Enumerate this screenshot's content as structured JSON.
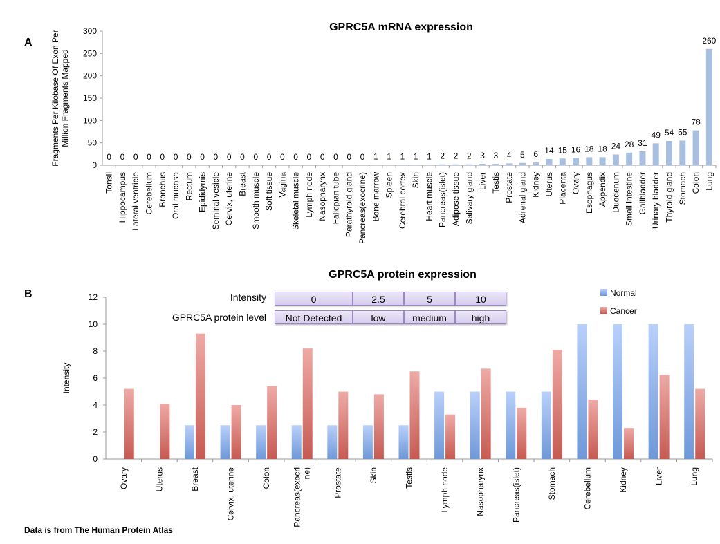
{
  "chart_data": [
    {
      "type": "bar",
      "panel": "A",
      "title": "GPRC5A mRNA expression",
      "ylabel": "Fragments Per Kilobase Of Exon Per Million Fragments Mapped",
      "ylim": [
        0,
        300
      ],
      "yticks": [
        0,
        50,
        100,
        150,
        200,
        250,
        300
      ],
      "categories": [
        "Tonsil",
        "Hippocampus",
        "Lateral ventricle",
        "Cerebellum",
        "Bronchus",
        "Oral mucosa",
        "Rectum",
        "Epididymis",
        "Seminal vesicle",
        "Cervix, uterine",
        "Breast",
        "Smooth muscle",
        "Soft tissue",
        "Vagina",
        "Skeletal muscle",
        "Lymph node",
        "Nasopharynx",
        "Fallopian tube",
        "Parathyroid gland",
        "Pancreas(exocrine)",
        "Bone marrow",
        "Spleen",
        "Cerebral cortex",
        "Skin",
        "Heart muscle",
        "Pancreas(islet)",
        "Adipose tissue",
        "Salivary gland",
        "Liver",
        "Testis",
        "Prostate",
        "Adrenal gland",
        "Kidney",
        "Uterus",
        "Placenta",
        "Ovary",
        "Esophagus",
        "Appendix",
        "Duodenum",
        "Small intestine",
        "Gallbladder",
        "Urinary bladder",
        "Thyroid gland",
        "Stomach",
        "Colon",
        "Lung"
      ],
      "values": [
        0,
        0,
        0,
        0,
        0,
        0,
        0,
        0,
        0,
        0,
        0,
        0,
        0,
        0,
        0,
        0,
        0,
        0,
        0,
        0,
        1,
        1,
        1,
        1,
        1,
        2,
        2,
        2,
        3,
        3,
        4,
        5,
        6,
        14,
        15,
        16,
        18,
        18,
        24,
        28,
        31,
        49,
        54,
        55,
        78,
        260
      ],
      "color": "#a9bfe0"
    },
    {
      "type": "bar",
      "panel": "B",
      "title": "GPRC5A protein expression",
      "ylabel": "Intensity",
      "ylim": [
        0,
        12
      ],
      "yticks": [
        0,
        2,
        4,
        6,
        8,
        10,
        12
      ],
      "legend_position": "top-right",
      "categories": [
        "Ovary",
        "Uterus",
        "Breast",
        "Cervix, uterine",
        "Colon",
        "Pancreas(exocrine)",
        "Prostate",
        "Skin",
        "Testis",
        "Lymph node",
        "Nasopharynx",
        "Pancreas(islet)",
        "Stomach",
        "Cerebellum",
        "Kidney",
        "Liver",
        "Lung"
      ],
      "series": [
        {
          "name": "Normal",
          "color": "#7fa6e6",
          "values": [
            0,
            0,
            2.5,
            2.5,
            2.5,
            2.5,
            2.5,
            2.5,
            2.5,
            5,
            5,
            5,
            5,
            10,
            10,
            10,
            10
          ]
        },
        {
          "name": "Cancer",
          "color": "#d9706a",
          "values": [
            5.2,
            4.1,
            9.3,
            4.0,
            5.4,
            8.2,
            5.0,
            4.8,
            6.5,
            3.3,
            6.7,
            3.8,
            8.1,
            4.4,
            2.3,
            6.25,
            5.2
          ]
        }
      ]
    }
  ],
  "panel_labels": {
    "a": "A",
    "b": "B"
  },
  "legend_table": {
    "row1_label": "Intensity",
    "row2_label": "GPRC5A protein level",
    "intensity": [
      "0",
      "2.5",
      "5",
      "10"
    ],
    "levels": [
      "Not Detected",
      "low",
      "medium",
      "high"
    ]
  },
  "footer": "Data is from The Human Protein Atlas"
}
